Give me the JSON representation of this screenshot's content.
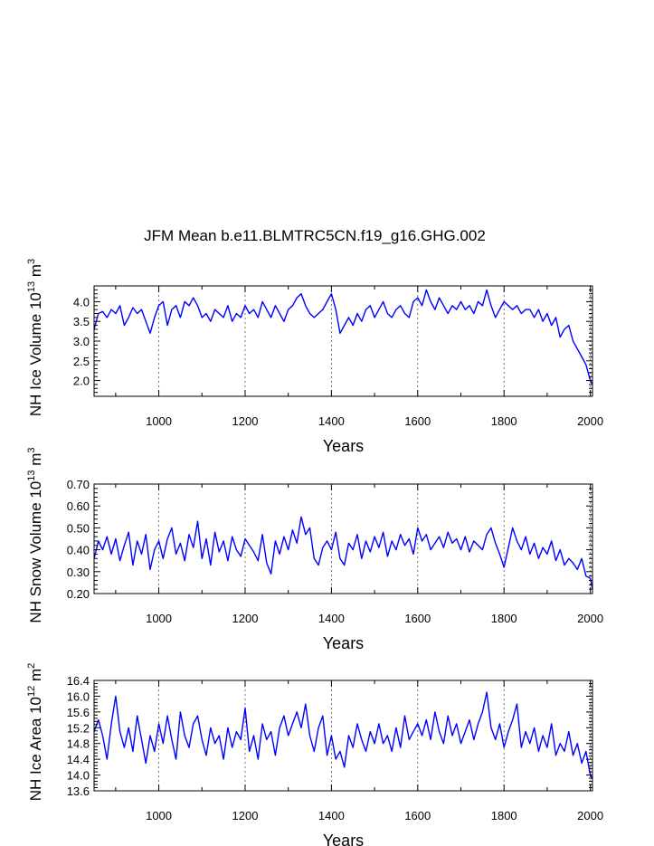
{
  "figure": {
    "title": "JFM Mean b.e11.BLMTRC5CN.f19_g16.GHG.002"
  },
  "chart_data": [
    {
      "type": "line",
      "name": "ice-volume",
      "title": "JFM Mean b.e11.BLMTRC5CN.f19_g16.GHG.002",
      "xlabel": "Years",
      "ylabel_text": "NH Ice Volume 10",
      "ylabel_exp": "13",
      "ylabel_unit": "m",
      "ylabel_unit_exp": "3",
      "xlim": [
        850,
        2005
      ],
      "ylim": [
        1.6,
        4.4
      ],
      "xticks": [
        1000,
        1200,
        1400,
        1600,
        1800,
        2000
      ],
      "yticks": [
        2.0,
        2.5,
        3.0,
        3.5,
        4.0
      ],
      "ytick_labels": [
        "2.0",
        "2.5",
        "3.0",
        "3.5",
        "4.0"
      ],
      "vlines": [
        1000,
        1200,
        1400,
        1600,
        1800,
        2000
      ],
      "color": "#0000ff",
      "series": [
        {
          "name": "NH Ice Volume",
          "x": [
            850,
            860,
            870,
            880,
            890,
            900,
            910,
            920,
            930,
            940,
            950,
            960,
            970,
            980,
            990,
            1000,
            1010,
            1020,
            1030,
            1040,
            1050,
            1060,
            1070,
            1080,
            1090,
            1100,
            1110,
            1120,
            1130,
            1140,
            1150,
            1160,
            1170,
            1180,
            1190,
            1200,
            1210,
            1220,
            1230,
            1240,
            1250,
            1260,
            1270,
            1280,
            1290,
            1300,
            1310,
            1320,
            1330,
            1340,
            1350,
            1360,
            1370,
            1380,
            1390,
            1400,
            1410,
            1420,
            1430,
            1440,
            1450,
            1460,
            1470,
            1480,
            1490,
            1500,
            1510,
            1520,
            1530,
            1540,
            1550,
            1560,
            1570,
            1580,
            1590,
            1600,
            1610,
            1620,
            1630,
            1640,
            1650,
            1660,
            1670,
            1680,
            1690,
            1700,
            1710,
            1720,
            1730,
            1740,
            1750,
            1760,
            1770,
            1780,
            1790,
            1800,
            1810,
            1820,
            1830,
            1840,
            1850,
            1860,
            1870,
            1880,
            1890,
            1900,
            1910,
            1920,
            1930,
            1940,
            1950,
            1960,
            1970,
            1980,
            1990,
            2000,
            2005
          ],
          "values": [
            3.3,
            3.7,
            3.75,
            3.6,
            3.8,
            3.7,
            3.9,
            3.4,
            3.6,
            3.85,
            3.7,
            3.8,
            3.5,
            3.2,
            3.6,
            3.9,
            4.0,
            3.4,
            3.8,
            3.9,
            3.6,
            4.0,
            3.9,
            4.1,
            3.9,
            3.6,
            3.7,
            3.5,
            3.8,
            3.7,
            3.6,
            3.9,
            3.5,
            3.7,
            3.6,
            3.9,
            3.7,
            3.8,
            3.6,
            4.0,
            3.8,
            3.6,
            3.9,
            3.7,
            3.5,
            3.8,
            3.9,
            4.1,
            4.2,
            3.9,
            3.7,
            3.6,
            3.7,
            3.8,
            4.0,
            4.2,
            3.8,
            3.2,
            3.4,
            3.6,
            3.4,
            3.7,
            3.5,
            3.8,
            3.9,
            3.6,
            3.8,
            4.0,
            3.7,
            3.6,
            3.8,
            3.9,
            3.7,
            3.6,
            4.0,
            4.1,
            3.9,
            4.3,
            4.0,
            3.8,
            4.1,
            3.9,
            3.7,
            3.9,
            3.8,
            4.0,
            3.8,
            3.9,
            3.7,
            4.0,
            3.9,
            4.3,
            3.9,
            3.6,
            3.8,
            4.0,
            3.9,
            3.8,
            3.9,
            3.7,
            3.8,
            3.8,
            3.6,
            3.8,
            3.5,
            3.7,
            3.4,
            3.6,
            3.1,
            3.3,
            3.4,
            3.0,
            2.8,
            2.6,
            2.4,
            2.0,
            1.9
          ]
        }
      ]
    },
    {
      "type": "line",
      "name": "snow-volume",
      "xlabel": "Years",
      "ylabel_text": "NH Snow Volume 10",
      "ylabel_exp": "13",
      "ylabel_unit": "m",
      "ylabel_unit_exp": "3",
      "xlim": [
        850,
        2005
      ],
      "ylim": [
        0.2,
        0.7
      ],
      "xticks": [
        1000,
        1200,
        1400,
        1600,
        1800,
        2000
      ],
      "yticks": [
        0.2,
        0.3,
        0.4,
        0.5,
        0.6,
        0.7
      ],
      "ytick_labels": [
        "0.20",
        "0.30",
        "0.40",
        "0.50",
        "0.60",
        "0.70"
      ],
      "vlines": [
        1000,
        1200,
        1400,
        1600,
        1800,
        2000
      ],
      "color": "#0000ff",
      "series": [
        {
          "name": "NH Snow Volume",
          "x": [
            850,
            860,
            870,
            880,
            890,
            900,
            910,
            920,
            930,
            940,
            950,
            960,
            970,
            980,
            990,
            1000,
            1010,
            1020,
            1030,
            1040,
            1050,
            1060,
            1070,
            1080,
            1090,
            1100,
            1110,
            1120,
            1130,
            1140,
            1150,
            1160,
            1170,
            1180,
            1190,
            1200,
            1210,
            1220,
            1230,
            1240,
            1250,
            1260,
            1270,
            1280,
            1290,
            1300,
            1310,
            1320,
            1330,
            1340,
            1350,
            1360,
            1370,
            1380,
            1390,
            1400,
            1410,
            1420,
            1430,
            1440,
            1450,
            1460,
            1470,
            1480,
            1490,
            1500,
            1510,
            1520,
            1530,
            1540,
            1550,
            1560,
            1570,
            1580,
            1590,
            1600,
            1610,
            1620,
            1630,
            1640,
            1650,
            1660,
            1670,
            1680,
            1690,
            1700,
            1710,
            1720,
            1730,
            1740,
            1750,
            1760,
            1770,
            1780,
            1790,
            1800,
            1810,
            1820,
            1830,
            1840,
            1850,
            1860,
            1870,
            1880,
            1890,
            1900,
            1910,
            1920,
            1930,
            1940,
            1950,
            1960,
            1970,
            1980,
            1990,
            2000,
            2005
          ],
          "values": [
            0.36,
            0.44,
            0.4,
            0.46,
            0.38,
            0.45,
            0.35,
            0.42,
            0.48,
            0.33,
            0.44,
            0.38,
            0.47,
            0.31,
            0.4,
            0.44,
            0.36,
            0.45,
            0.5,
            0.38,
            0.43,
            0.35,
            0.47,
            0.41,
            0.53,
            0.36,
            0.45,
            0.33,
            0.48,
            0.39,
            0.44,
            0.35,
            0.46,
            0.4,
            0.37,
            0.45,
            0.42,
            0.39,
            0.35,
            0.47,
            0.34,
            0.29,
            0.44,
            0.38,
            0.46,
            0.4,
            0.49,
            0.43,
            0.55,
            0.47,
            0.5,
            0.36,
            0.33,
            0.41,
            0.44,
            0.4,
            0.48,
            0.36,
            0.33,
            0.43,
            0.4,
            0.47,
            0.36,
            0.44,
            0.39,
            0.46,
            0.41,
            0.48,
            0.37,
            0.44,
            0.4,
            0.47,
            0.42,
            0.45,
            0.38,
            0.5,
            0.44,
            0.47,
            0.4,
            0.43,
            0.46,
            0.41,
            0.48,
            0.43,
            0.45,
            0.4,
            0.46,
            0.39,
            0.44,
            0.42,
            0.4,
            0.47,
            0.5,
            0.43,
            0.38,
            0.32,
            0.41,
            0.5,
            0.44,
            0.4,
            0.46,
            0.38,
            0.43,
            0.36,
            0.41,
            0.38,
            0.44,
            0.35,
            0.4,
            0.33,
            0.36,
            0.34,
            0.31,
            0.36,
            0.28,
            0.27,
            0.22
          ]
        }
      ]
    },
    {
      "type": "line",
      "name": "ice-area",
      "xlabel": "Years",
      "ylabel_text": "NH Ice Area 10",
      "ylabel_exp": "12",
      "ylabel_unit": "m",
      "ylabel_unit_exp": "2",
      "xlim": [
        850,
        2005
      ],
      "ylim": [
        13.6,
        16.4
      ],
      "xticks": [
        1000,
        1200,
        1400,
        1600,
        1800,
        2000
      ],
      "yticks": [
        13.6,
        14.0,
        14.4,
        14.8,
        15.2,
        15.6,
        16.0,
        16.4
      ],
      "ytick_labels": [
        "13.6",
        "14.0",
        "14.4",
        "14.8",
        "15.2",
        "15.6",
        "16.0",
        "16.4"
      ],
      "vlines": [
        1000,
        1200,
        1400,
        1600,
        1800,
        2000
      ],
      "color": "#0000ff",
      "series": [
        {
          "name": "NH Ice Area",
          "x": [
            850,
            860,
            870,
            880,
            890,
            900,
            910,
            920,
            930,
            940,
            950,
            960,
            970,
            980,
            990,
            1000,
            1010,
            1020,
            1030,
            1040,
            1050,
            1060,
            1070,
            1080,
            1090,
            1100,
            1110,
            1120,
            1130,
            1140,
            1150,
            1160,
            1170,
            1180,
            1190,
            1200,
            1210,
            1220,
            1230,
            1240,
            1250,
            1260,
            1270,
            1280,
            1290,
            1300,
            1310,
            1320,
            1330,
            1340,
            1350,
            1360,
            1370,
            1380,
            1390,
            1400,
            1410,
            1420,
            1430,
            1440,
            1450,
            1460,
            1470,
            1480,
            1490,
            1500,
            1510,
            1520,
            1530,
            1540,
            1550,
            1560,
            1570,
            1580,
            1590,
            1600,
            1610,
            1620,
            1630,
            1640,
            1650,
            1660,
            1670,
            1680,
            1690,
            1700,
            1710,
            1720,
            1730,
            1740,
            1750,
            1760,
            1770,
            1780,
            1790,
            1800,
            1810,
            1820,
            1830,
            1840,
            1850,
            1860,
            1870,
            1880,
            1890,
            1900,
            1910,
            1920,
            1930,
            1940,
            1950,
            1960,
            1970,
            1980,
            1990,
            2000,
            2005
          ],
          "values": [
            15.1,
            15.4,
            15.0,
            14.4,
            15.3,
            16.0,
            15.1,
            14.7,
            15.2,
            14.6,
            15.5,
            14.9,
            14.3,
            15.0,
            14.6,
            15.3,
            14.8,
            15.5,
            14.9,
            14.4,
            15.6,
            15.0,
            14.7,
            15.3,
            15.5,
            14.9,
            14.5,
            15.2,
            14.8,
            15.0,
            14.4,
            15.2,
            14.7,
            15.1,
            14.9,
            15.7,
            14.6,
            15.0,
            14.4,
            15.3,
            14.9,
            15.1,
            14.5,
            15.2,
            15.5,
            15.0,
            15.3,
            15.6,
            15.2,
            15.8,
            15.0,
            14.6,
            15.2,
            15.5,
            14.5,
            15.0,
            14.4,
            14.6,
            14.2,
            15.0,
            14.7,
            15.3,
            14.9,
            14.6,
            15.1,
            14.8,
            15.3,
            14.8,
            15.0,
            14.6,
            15.2,
            14.7,
            15.5,
            14.9,
            15.1,
            15.3,
            15.0,
            15.4,
            14.9,
            15.6,
            15.1,
            14.8,
            15.5,
            15.0,
            15.3,
            14.8,
            15.1,
            15.4,
            14.9,
            15.3,
            15.6,
            16.1,
            15.2,
            14.9,
            15.3,
            14.7,
            15.1,
            15.4,
            15.8,
            14.7,
            15.1,
            14.8,
            15.2,
            14.6,
            15.0,
            14.7,
            15.3,
            14.5,
            14.8,
            14.6,
            15.1,
            14.5,
            14.8,
            14.3,
            14.6,
            14.0,
            13.9
          ]
        }
      ]
    }
  ]
}
